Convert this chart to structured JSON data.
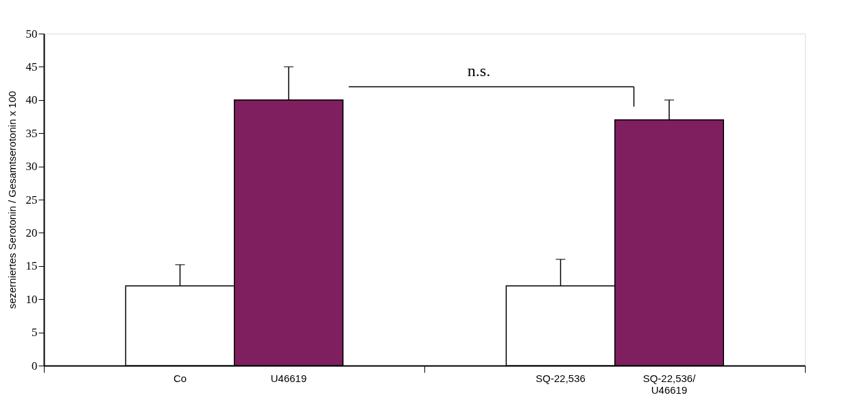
{
  "chart_data": {
    "type": "bar",
    "categories": [
      "Co",
      "U46619",
      "SQ-22,536",
      "SQ-22,536/\nU46619"
    ],
    "values": [
      12,
      40,
      12,
      37
    ],
    "colors": [
      "#ffffff",
      "#7f1f5f",
      "#ffffff",
      "#7f1f5f"
    ],
    "errors": [
      3.2,
      5,
      4,
      3
    ],
    "ylabel": "sezerniertes Serotonin / Gesamtserotonin x 100",
    "ylim": [
      0,
      50
    ],
    "yticks": [
      0,
      5,
      10,
      15,
      20,
      25,
      30,
      35,
      40,
      45,
      50
    ],
    "annotations": [
      "n.s."
    ],
    "grid": false,
    "legend": false
  }
}
